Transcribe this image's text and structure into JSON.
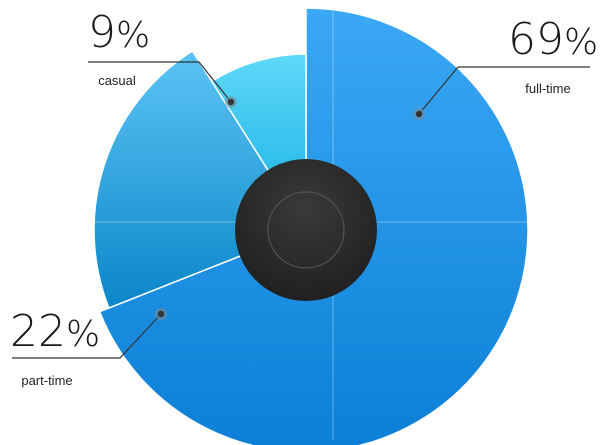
{
  "chart_data": {
    "type": "pie",
    "title": "",
    "slices": [
      {
        "label": "full-time",
        "value": 69,
        "display": "69",
        "unit": "%",
        "color_top": "#3aa8f5",
        "color_bottom": "#0b7fd6"
      },
      {
        "label": "part-time",
        "value": 22,
        "display": "22",
        "unit": "%",
        "color_top": "#5cc4f5",
        "color_bottom": "#0a86c8"
      },
      {
        "label": "casual",
        "value": 9,
        "display": "9",
        "unit": "%",
        "color_top": "#55d2f5",
        "color_bottom": "#14b6ea"
      }
    ],
    "center_color": "#2a2a2a",
    "legend": "callouts"
  }
}
